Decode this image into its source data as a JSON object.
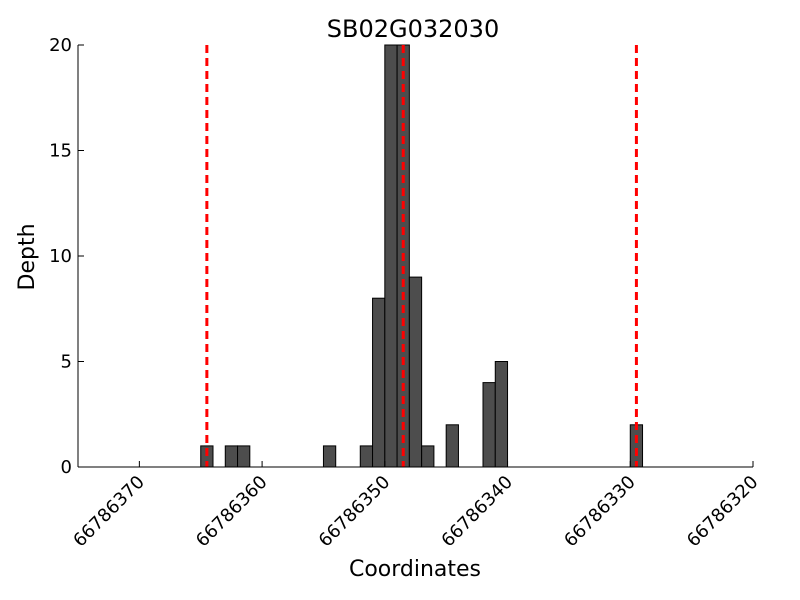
{
  "chart_data": {
    "type": "bar",
    "title": "SB02G032030",
    "xlabel": "Coordinates",
    "ylabel": "Depth",
    "xlim": [
      66786375,
      66786320
    ],
    "ylim": [
      0,
      20
    ],
    "x_ticks": [
      66786370,
      66786360,
      66786350,
      66786340,
      66786330,
      66786320
    ],
    "y_ticks": [
      0,
      5,
      10,
      15,
      20
    ],
    "bar_color": "#4d4d4d",
    "bar_edge_color": "#000000",
    "reference_line_color": "#ff0000",
    "reference_lines": [
      66786364.5,
      66786348.5,
      66786329.5
    ],
    "bars": [
      {
        "x": 66786364.5,
        "value": 1
      },
      {
        "x": 66786362.5,
        "value": 1
      },
      {
        "x": 66786361.5,
        "value": 1
      },
      {
        "x": 66786354.5,
        "value": 1
      },
      {
        "x": 66786351.5,
        "value": 1
      },
      {
        "x": 66786350.5,
        "value": 8
      },
      {
        "x": 66786349.5,
        "value": 20
      },
      {
        "x": 66786348.5,
        "value": 20
      },
      {
        "x": 66786347.5,
        "value": 9
      },
      {
        "x": 66786346.5,
        "value": 1
      },
      {
        "x": 66786344.5,
        "value": 2
      },
      {
        "x": 66786341.5,
        "value": 4
      },
      {
        "x": 66786340.5,
        "value": 5
      },
      {
        "x": 66786329.5,
        "value": 2
      }
    ]
  }
}
